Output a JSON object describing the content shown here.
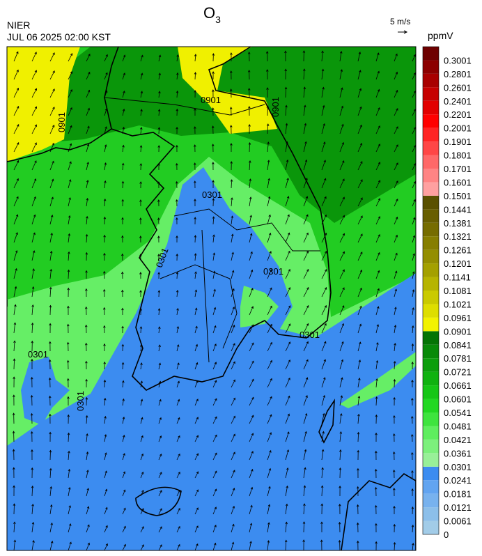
{
  "title": {
    "text": "O",
    "subscript": "3"
  },
  "source": "NIER",
  "timestamp": "JUL 06 2025 02:00 KST",
  "wind_scale": "5 m/s",
  "colorbar": {
    "unit": "ppmV",
    "levels": [
      0,
      0.0061,
      0.0121,
      0.0181,
      0.0241,
      0.0301,
      0.0361,
      0.0421,
      0.0481,
      0.0541,
      0.0601,
      0.0661,
      0.0721,
      0.0781,
      0.0841,
      0.0901,
      0.0961,
      0.1021,
      0.1081,
      0.1141,
      0.1201,
      0.1261,
      0.1321,
      0.1381,
      0.1441,
      0.1501,
      0.1601,
      0.1701,
      0.1801,
      0.1901,
      0.2001,
      0.2201,
      0.2401,
      0.2601,
      0.2801,
      0.3001
    ],
    "colors": [
      "#a2cce8",
      "#8cbfea",
      "#78b2ee",
      "#62a4f0",
      "#3c8cf0",
      "#98f098",
      "#7cf07c",
      "#5eee5e",
      "#3ee43e",
      "#22d822",
      "#16c616",
      "#10b210",
      "#0c9e0c",
      "#088a08",
      "#047404",
      "#f2f200",
      "#dede00",
      "#caca00",
      "#b6b400",
      "#a4a000",
      "#948e00",
      "#867e00",
      "#766c00",
      "#685e00",
      "#5a5000",
      "#ffa0a0",
      "#ff8484",
      "#ff6868",
      "#ff4646",
      "#ff2424",
      "#ff0000",
      "#e20000",
      "#c60000",
      "#a80000",
      "#8c0000",
      "#6e0000"
    ]
  },
  "contour_labels": [
    "0901",
    "0901",
    "0901",
    "0301",
    "0301",
    "0301",
    "0301",
    "0301",
    "0301"
  ]
}
